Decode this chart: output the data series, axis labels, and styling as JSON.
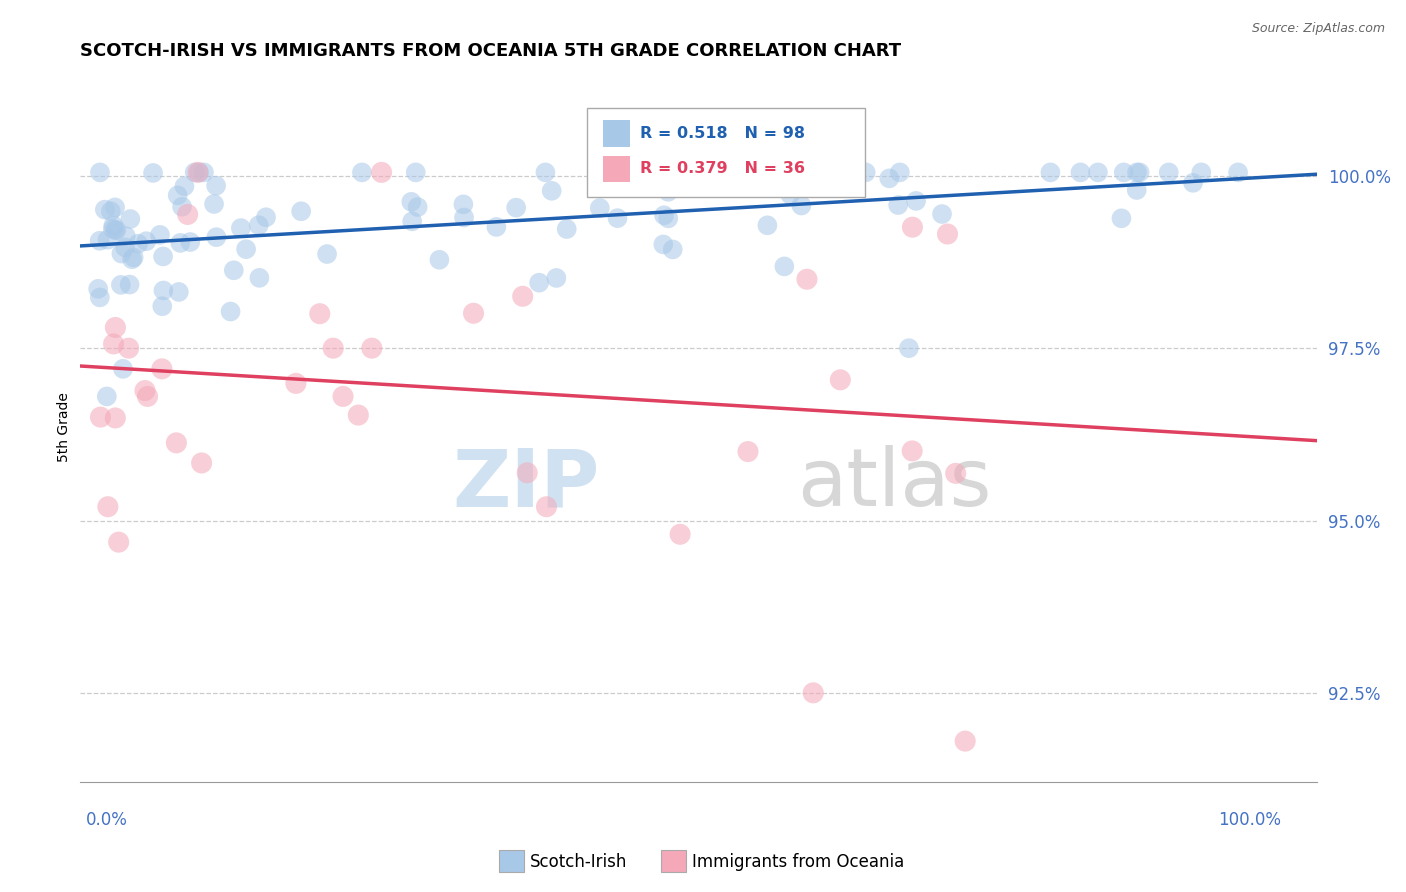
{
  "title": "SCOTCH-IRISH VS IMMIGRANTS FROM OCEANIA 5TH GRADE CORRELATION CHART",
  "source": "Source: ZipAtlas.com",
  "ylabel": "5th Grade",
  "y_ticks": [
    92.5,
    95.0,
    97.5,
    100.0
  ],
  "y_tick_labels": [
    "92.5%",
    "95.0%",
    "97.5%",
    "100.0%"
  ],
  "legend_labels": [
    "Scotch-Irish",
    "Immigrants from Oceania"
  ],
  "blue_R": 0.518,
  "blue_N": 98,
  "pink_R": 0.379,
  "pink_N": 36,
  "blue_color": "#a8c8e8",
  "pink_color": "#f4a8b8",
  "blue_line_color": "#2060b0",
  "pink_line_color": "#e04060",
  "ylim_min": 91.2,
  "ylim_max": 101.5,
  "xlim_min": -1.5,
  "xlim_max": 103.0
}
